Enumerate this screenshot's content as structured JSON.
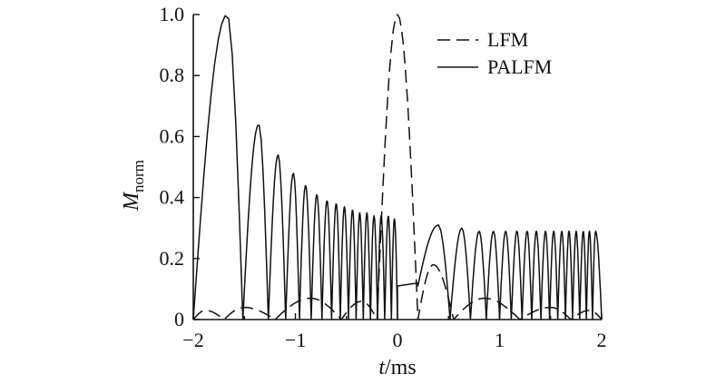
{
  "chart_data": {
    "type": "line",
    "xlabel_italic": "t",
    "xlabel_rest": "/ms",
    "ylabel_main": "M",
    "ylabel_sub": "norm",
    "xlim": [
      -2,
      2
    ],
    "ylim": [
      0,
      1.0
    ],
    "x_ticks": [
      -2,
      -1,
      0,
      1,
      2
    ],
    "x_tick_labels": [
      "−2",
      "−1",
      "0",
      "1",
      "2"
    ],
    "y_ticks": [
      0,
      0.2,
      0.4,
      0.6,
      0.8,
      1.0
    ],
    "y_tick_labels": [
      "0",
      "0.2",
      "0.4",
      "0.6",
      "0.8",
      "1.0"
    ],
    "grid": false,
    "legend_position": "top-right",
    "series": [
      {
        "name": "LFM",
        "style": "dashed",
        "description": "sinc-like pulse centred at t = 0 with low sidelobes",
        "peak": {
          "x": 0.0,
          "y": 1.0
        },
        "mainlobe_nulls": [
          -0.2,
          0.2
        ],
        "sidelobes": [
          {
            "x": -1.88,
            "y": 0.03
          },
          {
            "x": -1.5,
            "y": 0.04
          },
          {
            "x": -0.85,
            "y": 0.07
          },
          {
            "x": -0.35,
            "y": 0.06
          },
          {
            "x": 0.35,
            "y": 0.18
          },
          {
            "x": 0.85,
            "y": 0.07
          },
          {
            "x": 1.5,
            "y": 0.04
          },
          {
            "x": 1.88,
            "y": 0.03
          }
        ],
        "nulls": [
          -1.7,
          -1.2,
          -0.55,
          -0.2,
          0.2,
          0.55,
          1.2,
          1.7
        ]
      },
      {
        "name": "PALFM",
        "style": "solid",
        "description": "oscillating envelope; largest peak near t = −1.7, decaying lobes to t = 0, then ~0.3 level lobes",
        "peaks": [
          {
            "x": -1.67,
            "y": 1.0
          },
          {
            "x": -1.36,
            "y": 0.64
          },
          {
            "x": -1.17,
            "y": 0.54
          },
          {
            "x": -1.02,
            "y": 0.48
          },
          {
            "x": -0.9,
            "y": 0.44
          },
          {
            "x": -0.79,
            "y": 0.41
          },
          {
            "x": -0.69,
            "y": 0.39
          },
          {
            "x": -0.6,
            "y": 0.38
          },
          {
            "x": -0.52,
            "y": 0.37
          },
          {
            "x": -0.44,
            "y": 0.36
          },
          {
            "x": -0.37,
            "y": 0.35
          },
          {
            "x": -0.3,
            "y": 0.35
          },
          {
            "x": -0.23,
            "y": 0.34
          },
          {
            "x": -0.16,
            "y": 0.34
          },
          {
            "x": -0.09,
            "y": 0.34
          },
          {
            "x": -0.03,
            "y": 0.33
          },
          {
            "x": 0.4,
            "y": 0.31
          },
          {
            "x": 0.63,
            "y": 0.3
          },
          {
            "x": 0.8,
            "y": 0.29
          },
          {
            "x": 0.94,
            "y": 0.29
          },
          {
            "x": 1.06,
            "y": 0.29
          },
          {
            "x": 1.17,
            "y": 0.29
          },
          {
            "x": 1.27,
            "y": 0.29
          },
          {
            "x": 1.36,
            "y": 0.29
          },
          {
            "x": 1.45,
            "y": 0.29
          },
          {
            "x": 1.53,
            "y": 0.29
          },
          {
            "x": 1.61,
            "y": 0.29
          },
          {
            "x": 1.68,
            "y": 0.29
          },
          {
            "x": 1.75,
            "y": 0.29
          },
          {
            "x": 1.82,
            "y": 0.29
          },
          {
            "x": 1.88,
            "y": 0.29
          },
          {
            "x": 1.94,
            "y": 0.29
          }
        ],
        "plateau_near_zero": {
          "x_range": [
            0.0,
            0.2
          ],
          "y": 0.11
        }
      }
    ]
  }
}
